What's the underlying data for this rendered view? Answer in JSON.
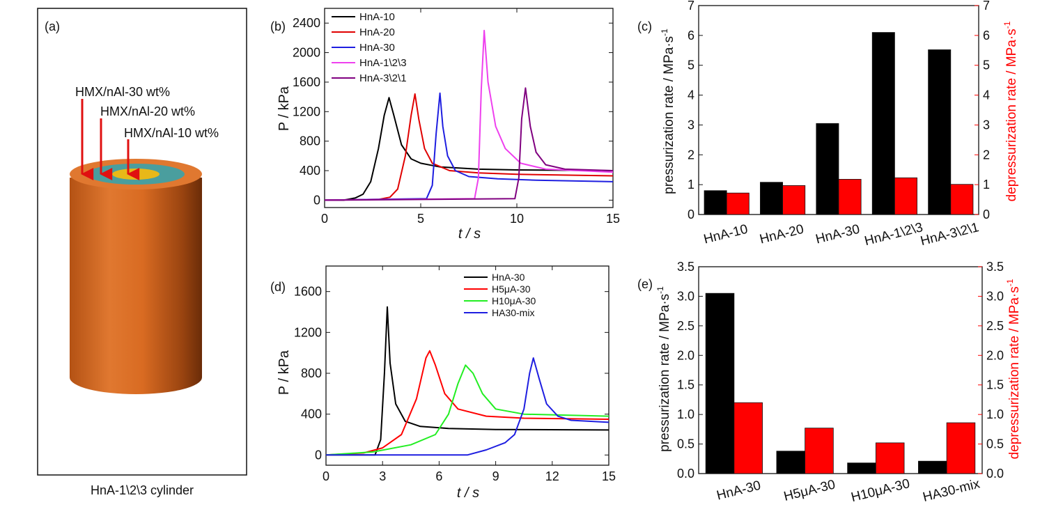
{
  "panel_a": {
    "label": "(a)",
    "caption": "HnA-1\\2\\3 cylinder",
    "layers": [
      "HMX/nAl-30 wt%",
      "HMX/nAl-20 wt%",
      "HMX/nAl-10 wt%"
    ],
    "colors": {
      "outer": "#d96b22",
      "middle": "#4a9e9e",
      "inner": "#e8b818",
      "arrow": "#e01010"
    }
  },
  "chart_data": [
    {
      "panel": "(b)",
      "type": "line",
      "xlabel": "t / s",
      "ylabel": "P / kPa",
      "xlim": [
        0,
        15
      ],
      "ylim": [
        -100,
        2600
      ],
      "xticks": [
        0,
        5,
        10,
        15
      ],
      "yticks": [
        0,
        400,
        800,
        1200,
        1600,
        2000,
        2400
      ],
      "legend_position": "top-left",
      "series": [
        {
          "name": "HnA-10",
          "color": "#000000",
          "x": [
            0,
            1.0,
            1.6,
            2.0,
            2.4,
            2.8,
            3.1,
            3.35,
            3.6,
            4.0,
            4.5,
            5.0,
            6.0,
            8.0,
            10.0,
            15.0
          ],
          "y": [
            0,
            0,
            30,
            80,
            250,
            700,
            1150,
            1390,
            1150,
            750,
            560,
            500,
            450,
            420,
            410,
            400
          ]
        },
        {
          "name": "HnA-20",
          "color": "#e00000",
          "x": [
            0,
            2.8,
            3.4,
            3.8,
            4.2,
            4.5,
            4.7,
            4.9,
            5.2,
            5.6,
            6.5,
            8.0,
            10.0,
            15.0
          ],
          "y": [
            0,
            10,
            40,
            150,
            600,
            1150,
            1440,
            1100,
            700,
            500,
            400,
            370,
            350,
            330
          ]
        },
        {
          "name": "HnA-30",
          "color": "#1e1ee0",
          "x": [
            0,
            5.3,
            5.6,
            5.8,
            6.0,
            6.15,
            6.4,
            6.8,
            7.5,
            9.0,
            11.0,
            15.0
          ],
          "y": [
            0,
            20,
            200,
            900,
            1450,
            1000,
            600,
            400,
            320,
            290,
            270,
            250
          ]
        },
        {
          "name": "HnA-1\\2\\3",
          "color": "#ee40ee",
          "x": [
            0,
            7.8,
            8.0,
            8.15,
            8.3,
            8.5,
            8.9,
            9.4,
            10.2,
            11.5,
            15.0
          ],
          "y": [
            0,
            20,
            300,
            1500,
            2300,
            1600,
            1000,
            700,
            500,
            420,
            380
          ]
        },
        {
          "name": "HnA-3\\2\\1",
          "color": "#800080",
          "x": [
            0,
            9.9,
            10.1,
            10.25,
            10.45,
            10.7,
            11.0,
            11.5,
            12.5,
            15.0
          ],
          "y": [
            0,
            20,
            300,
            1100,
            1520,
            1000,
            650,
            480,
            420,
            400
          ]
        }
      ]
    },
    {
      "panel": "(c)",
      "type": "bar",
      "categories": [
        "HnA-10",
        "HnA-20",
        "HnA-30",
        "HnA-1\\2\\3",
        "HnA-3\\2\\1"
      ],
      "series": [
        {
          "name": "pressurization rate",
          "axis": "left",
          "color": "#000000",
          "values": [
            0.8,
            1.08,
            3.05,
            6.1,
            5.52
          ]
        },
        {
          "name": "depressurization rate",
          "axis": "right",
          "color": "#ff0000",
          "values": [
            0.72,
            0.97,
            1.18,
            1.23,
            1.01
          ]
        }
      ],
      "ylabel": "pressurization rate / MPa·s",
      "ylabel_right": "depressurization rate / MPa·s",
      "ylabel_sup": "-1",
      "ylim": [
        0,
        7
      ],
      "yticks": [
        0,
        1,
        2,
        3,
        4,
        5,
        6,
        7
      ],
      "ylim_right": [
        0,
        7
      ],
      "yticks_right": [
        0,
        1,
        2,
        3,
        4,
        5,
        6,
        7
      ]
    },
    {
      "panel": "(d)",
      "type": "line",
      "xlabel": "t / s",
      "ylabel": "P / kPa",
      "xlim": [
        0,
        15
      ],
      "ylim": [
        -100,
        1850
      ],
      "xticks": [
        0,
        3,
        6,
        9,
        12,
        15
      ],
      "yticks": [
        0,
        400,
        800,
        1200,
        1600
      ],
      "legend_position": "top-right",
      "series": [
        {
          "name": "HnA-30",
          "color": "#000000",
          "x": [
            0,
            2.6,
            2.9,
            3.1,
            3.25,
            3.4,
            3.7,
            4.2,
            5.0,
            6.5,
            9.0,
            15.0
          ],
          "y": [
            0,
            0,
            150,
            800,
            1450,
            900,
            500,
            330,
            280,
            260,
            250,
            245
          ]
        },
        {
          "name": "H5μA-30",
          "color": "#ff0000",
          "x": [
            0,
            2.0,
            3.0,
            4.0,
            4.8,
            5.3,
            5.5,
            5.8,
            6.3,
            7.0,
            8.5,
            10.5,
            15.0
          ],
          "y": [
            0,
            20,
            70,
            200,
            550,
            950,
            1020,
            880,
            600,
            450,
            380,
            360,
            350
          ]
        },
        {
          "name": "H10μA-30",
          "color": "#22ee22",
          "x": [
            0,
            2.5,
            4.5,
            5.8,
            6.5,
            7.0,
            7.4,
            7.8,
            8.3,
            9.0,
            10.5,
            15.0
          ],
          "y": [
            0,
            30,
            100,
            200,
            400,
            700,
            880,
            800,
            600,
            450,
            400,
            380
          ]
        },
        {
          "name": "HA30-mix",
          "color": "#1e1ee0",
          "x": [
            0,
            7.5,
            8.5,
            9.5,
            10.0,
            10.5,
            10.8,
            11.0,
            11.3,
            11.7,
            12.3,
            13.0,
            15.0
          ],
          "y": [
            0,
            0,
            50,
            120,
            200,
            450,
            800,
            950,
            750,
            500,
            380,
            340,
            320
          ]
        }
      ]
    },
    {
      "panel": "(e)",
      "type": "bar",
      "categories": [
        "HnA-30",
        "H5μA-30",
        "H10μA-30",
        "HA30-mix"
      ],
      "series": [
        {
          "name": "pressurization rate",
          "axis": "left",
          "color": "#000000",
          "values": [
            3.05,
            0.38,
            0.18,
            0.21
          ]
        },
        {
          "name": "depressurization rate",
          "axis": "right",
          "color": "#ff0000",
          "values": [
            1.2,
            0.77,
            0.52,
            0.86
          ]
        }
      ],
      "ylabel": "pressurization rate / MPa·s",
      "ylabel_right": "depressurization rate / MPa·s",
      "ylabel_sup": "-1",
      "ylim": [
        0,
        3.5
      ],
      "yticks": [
        0.0,
        0.5,
        1.0,
        1.5,
        2.0,
        2.5,
        3.0,
        3.5
      ],
      "ylim_right": [
        0,
        3.5
      ],
      "yticks_right": [
        0.0,
        0.5,
        1.0,
        1.5,
        2.0,
        2.5,
        3.0,
        3.5
      ]
    }
  ]
}
